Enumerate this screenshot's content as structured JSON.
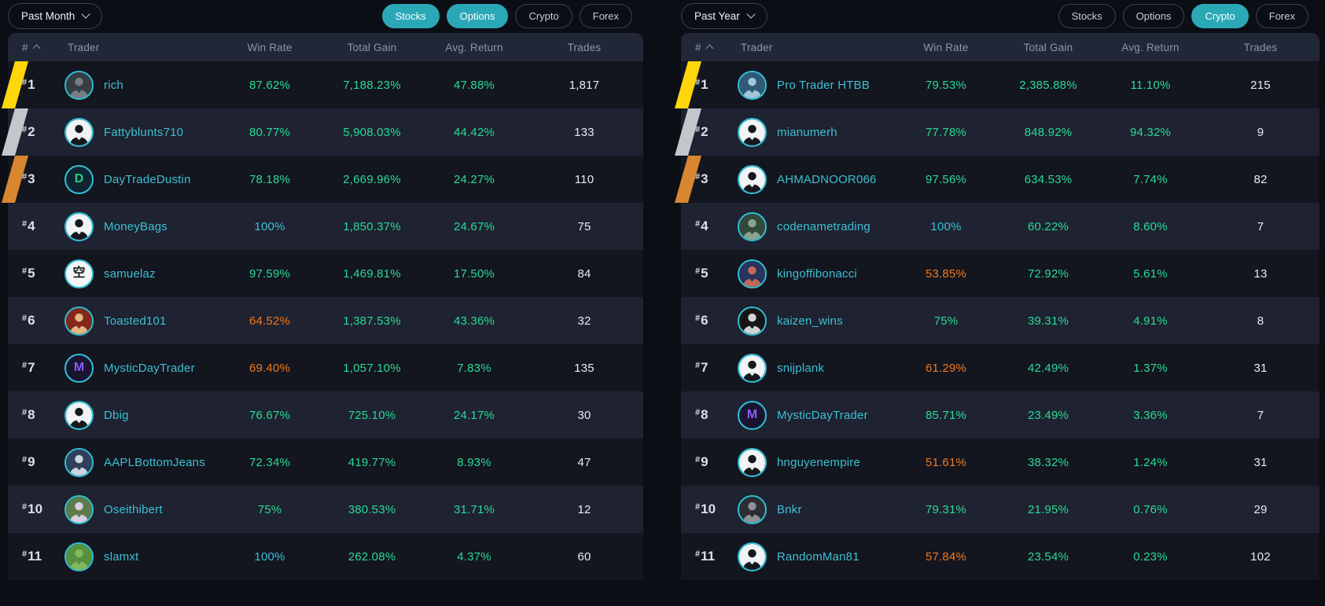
{
  "colors": {
    "green": "#2adb95",
    "orange": "#ef7a1f",
    "cyan": "#38c3d6",
    "gold": "#ffd60a",
    "silver": "#c3c6cb",
    "bronze": "#d8862f",
    "accent": "#2ba8b6"
  },
  "rank_prefix": "#",
  "columns": [
    "#",
    "Trader",
    "Win Rate",
    "Total Gain",
    "Avg. Return",
    "Trades"
  ],
  "panels": [
    {
      "period": "Past Month",
      "filters": [
        {
          "label": "Stocks",
          "active": true
        },
        {
          "label": "Options",
          "active": true
        },
        {
          "label": "Crypto",
          "active": false
        },
        {
          "label": "Forex",
          "active": false
        }
      ],
      "rows": [
        {
          "rank": "1",
          "ribbon": "gold",
          "trader": "rich",
          "avatar": {
            "style": "photo",
            "bg": "#383d43",
            "fg": "#777e87"
          },
          "win_rate": "87.62%",
          "wr_color": "green",
          "total_gain": "7,188.23%",
          "avg_return": "47.88%",
          "trades": "1,817"
        },
        {
          "rank": "2",
          "ribbon": "silver",
          "trader": "Fattyblunts710",
          "avatar": {
            "style": "suit"
          },
          "win_rate": "80.77%",
          "wr_color": "green",
          "total_gain": "5,908.03%",
          "avg_return": "44.42%",
          "trades": "133"
        },
        {
          "rank": "3",
          "ribbon": "bronze",
          "trader": "DayTradeDustin",
          "avatar": {
            "style": "letter",
            "glyph": "D",
            "bg": "#0e2433",
            "fg": "#2ecf7a"
          },
          "win_rate": "78.18%",
          "wr_color": "green",
          "total_gain": "2,669.96%",
          "avg_return": "24.27%",
          "trades": "110"
        },
        {
          "rank": "4",
          "trader": "MoneyBags",
          "avatar": {
            "style": "suit"
          },
          "win_rate": "100%",
          "wr_color": "cyan",
          "total_gain": "1,850.37%",
          "avg_return": "24.67%",
          "trades": "75"
        },
        {
          "rank": "5",
          "trader": "samuelaz",
          "avatar": {
            "style": "letter",
            "glyph": "空",
            "bg": "#f2f4f6",
            "fg": "#17191d"
          },
          "win_rate": "97.59%",
          "wr_color": "green",
          "total_gain": "1,469.81%",
          "avg_return": "17.50%",
          "trades": "84"
        },
        {
          "rank": "6",
          "trader": "Toasted101",
          "avatar": {
            "style": "photo",
            "bg": "#84271c",
            "fg": "#e5b67f"
          },
          "win_rate": "64.52%",
          "wr_color": "orange",
          "total_gain": "1,387.53%",
          "avg_return": "43.36%",
          "trades": "32"
        },
        {
          "rank": "7",
          "trader": "MysticDayTrader",
          "avatar": {
            "style": "letter",
            "glyph": "M",
            "bg": "#191430",
            "fg": "#8a5cf5"
          },
          "win_rate": "69.40%",
          "wr_color": "orange",
          "total_gain": "1,057.10%",
          "avg_return": "7.83%",
          "trades": "135"
        },
        {
          "rank": "8",
          "trader": "Dbig",
          "avatar": {
            "style": "suit"
          },
          "win_rate": "76.67%",
          "wr_color": "green",
          "total_gain": "725.10%",
          "avg_return": "24.17%",
          "trades": "30"
        },
        {
          "rank": "9",
          "trader": "AAPLBottomJeans",
          "avatar": {
            "style": "photo",
            "bg": "#30405c",
            "fg": "#cdd5e1"
          },
          "win_rate": "72.34%",
          "wr_color": "green",
          "total_gain": "419.77%",
          "avg_return": "8.93%",
          "trades": "47"
        },
        {
          "rank": "10",
          "trader": "Oseithibert",
          "avatar": {
            "style": "photo",
            "bg": "#5d7c49",
            "fg": "#d9cfe4"
          },
          "win_rate": "75%",
          "wr_color": "green",
          "total_gain": "380.53%",
          "avg_return": "31.71%",
          "trades": "12"
        },
        {
          "rank": "11",
          "trader": "slamxt",
          "avatar": {
            "style": "photo",
            "bg": "#57913f",
            "fg": "#83b95c"
          },
          "win_rate": "100%",
          "wr_color": "cyan",
          "total_gain": "262.08%",
          "avg_return": "4.37%",
          "trades": "60"
        }
      ]
    },
    {
      "period": "Past Year",
      "filters": [
        {
          "label": "Stocks",
          "active": false
        },
        {
          "label": "Options",
          "active": false
        },
        {
          "label": "Crypto",
          "active": true
        },
        {
          "label": "Forex",
          "active": false
        }
      ],
      "rows": [
        {
          "rank": "1",
          "ribbon": "gold",
          "trader": "Pro Trader HTBB",
          "avatar": {
            "style": "photo",
            "bg": "#2e5a78",
            "fg": "#a3c6da"
          },
          "win_rate": "79.53%",
          "wr_color": "green",
          "total_gain": "2,385.88%",
          "avg_return": "11.10%",
          "trades": "215"
        },
        {
          "rank": "2",
          "ribbon": "silver",
          "trader": "mianumerh",
          "avatar": {
            "style": "suit"
          },
          "win_rate": "77.78%",
          "wr_color": "green",
          "total_gain": "848.92%",
          "avg_return": "94.32%",
          "trades": "9"
        },
        {
          "rank": "3",
          "ribbon": "bronze",
          "trader": "AHMADNOOR066",
          "avatar": {
            "style": "suit"
          },
          "win_rate": "97.56%",
          "wr_color": "green",
          "total_gain": "634.53%",
          "avg_return": "7.74%",
          "trades": "82"
        },
        {
          "rank": "4",
          "trader": "codenametrading",
          "avatar": {
            "style": "photo",
            "bg": "#33493b",
            "fg": "#8ba492"
          },
          "win_rate": "100%",
          "wr_color": "cyan",
          "total_gain": "60.22%",
          "avg_return": "8.60%",
          "trades": "7"
        },
        {
          "rank": "5",
          "trader": "kingoffibonacci",
          "avatar": {
            "style": "photo",
            "bg": "#28345d",
            "fg": "#bf6a59"
          },
          "win_rate": "53.85%",
          "wr_color": "orange",
          "total_gain": "72.92%",
          "avg_return": "5.61%",
          "trades": "13"
        },
        {
          "rank": "6",
          "trader": "kaizen_wins",
          "avatar": {
            "style": "photo",
            "bg": "#151515",
            "fg": "#d2d2d2"
          },
          "win_rate": "75%",
          "wr_color": "green",
          "total_gain": "39.31%",
          "avg_return": "4.91%",
          "trades": "8"
        },
        {
          "rank": "7",
          "trader": "snijplank",
          "avatar": {
            "style": "suit"
          },
          "win_rate": "61.29%",
          "wr_color": "orange",
          "total_gain": "42.49%",
          "avg_return": "1.37%",
          "trades": "31"
        },
        {
          "rank": "8",
          "trader": "MysticDayTrader",
          "avatar": {
            "style": "letter",
            "glyph": "M",
            "bg": "#191430",
            "fg": "#8a5cf5"
          },
          "win_rate": "85.71%",
          "wr_color": "green",
          "total_gain": "23.49%",
          "avg_return": "3.36%",
          "trades": "7"
        },
        {
          "rank": "9",
          "trader": "hnguyenempire",
          "avatar": {
            "style": "suit"
          },
          "win_rate": "51.61%",
          "wr_color": "orange",
          "total_gain": "38.32%",
          "avg_return": "1.24%",
          "trades": "31"
        },
        {
          "rank": "10",
          "trader": "Bnkr",
          "avatar": {
            "style": "photo",
            "bg": "#2c2c33",
            "fg": "#8f9199"
          },
          "win_rate": "79.31%",
          "wr_color": "green",
          "total_gain": "21.95%",
          "avg_return": "0.76%",
          "trades": "29"
        },
        {
          "rank": "11",
          "trader": "RandomMan81",
          "avatar": {
            "style": "suit"
          },
          "win_rate": "57.84%",
          "wr_color": "orange",
          "total_gain": "23.54%",
          "avg_return": "0.23%",
          "trades": "102"
        }
      ]
    }
  ]
}
